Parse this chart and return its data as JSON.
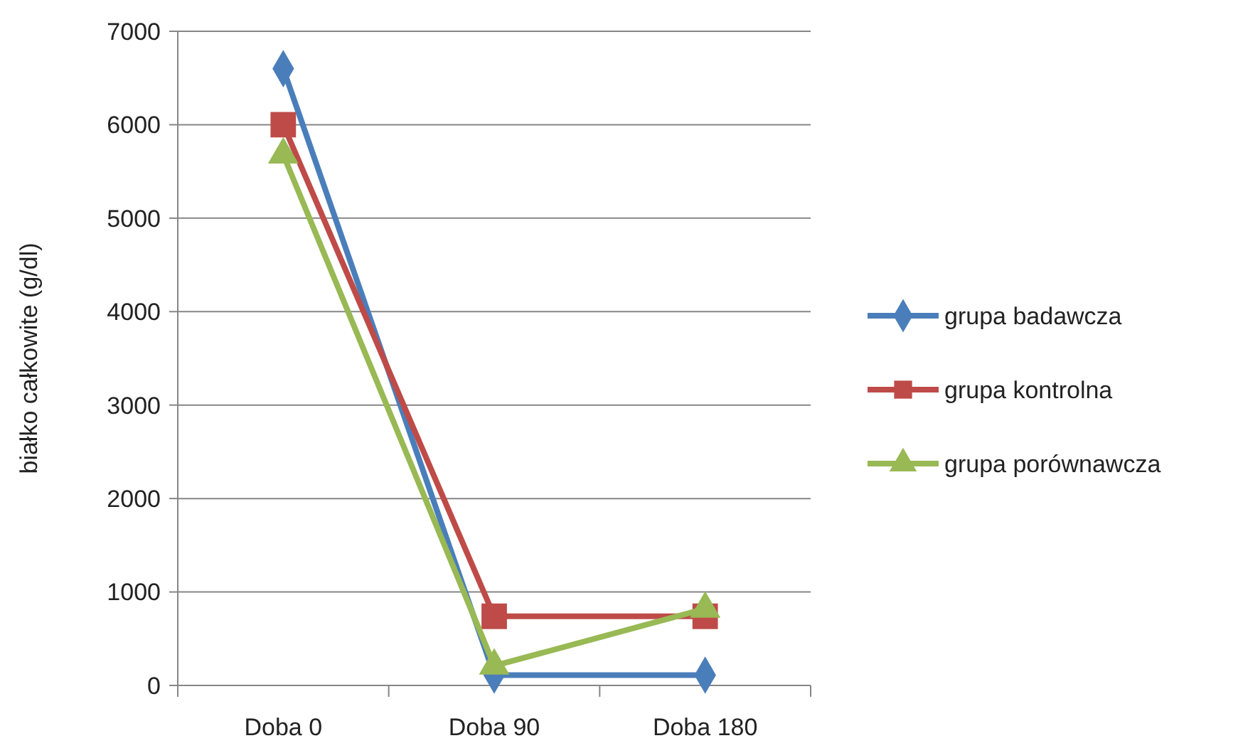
{
  "chart_data": {
    "type": "line",
    "ylabel": "białko całkowite (g/dl)",
    "categories": [
      "Doba 0",
      "Doba 90",
      "Doba 180"
    ],
    "series": [
      {
        "name": "grupa badawcza",
        "color": "#4a7ebb",
        "values": [
          6600,
          110,
          110
        ],
        "marker": "diamond"
      },
      {
        "name": "grupa kontrolna",
        "color": "#be4b48",
        "values": [
          6000,
          740,
          740
        ],
        "marker": "square"
      },
      {
        "name": "grupa porównawcza",
        "color": "#98b954",
        "values": [
          5680,
          210,
          820
        ],
        "marker": "triangle"
      }
    ],
    "ylim": [
      0,
      7000
    ],
    "yticks": [
      0,
      1000,
      2000,
      3000,
      4000,
      5000,
      6000,
      7000
    ],
    "grid": "y",
    "legend": "right"
  }
}
